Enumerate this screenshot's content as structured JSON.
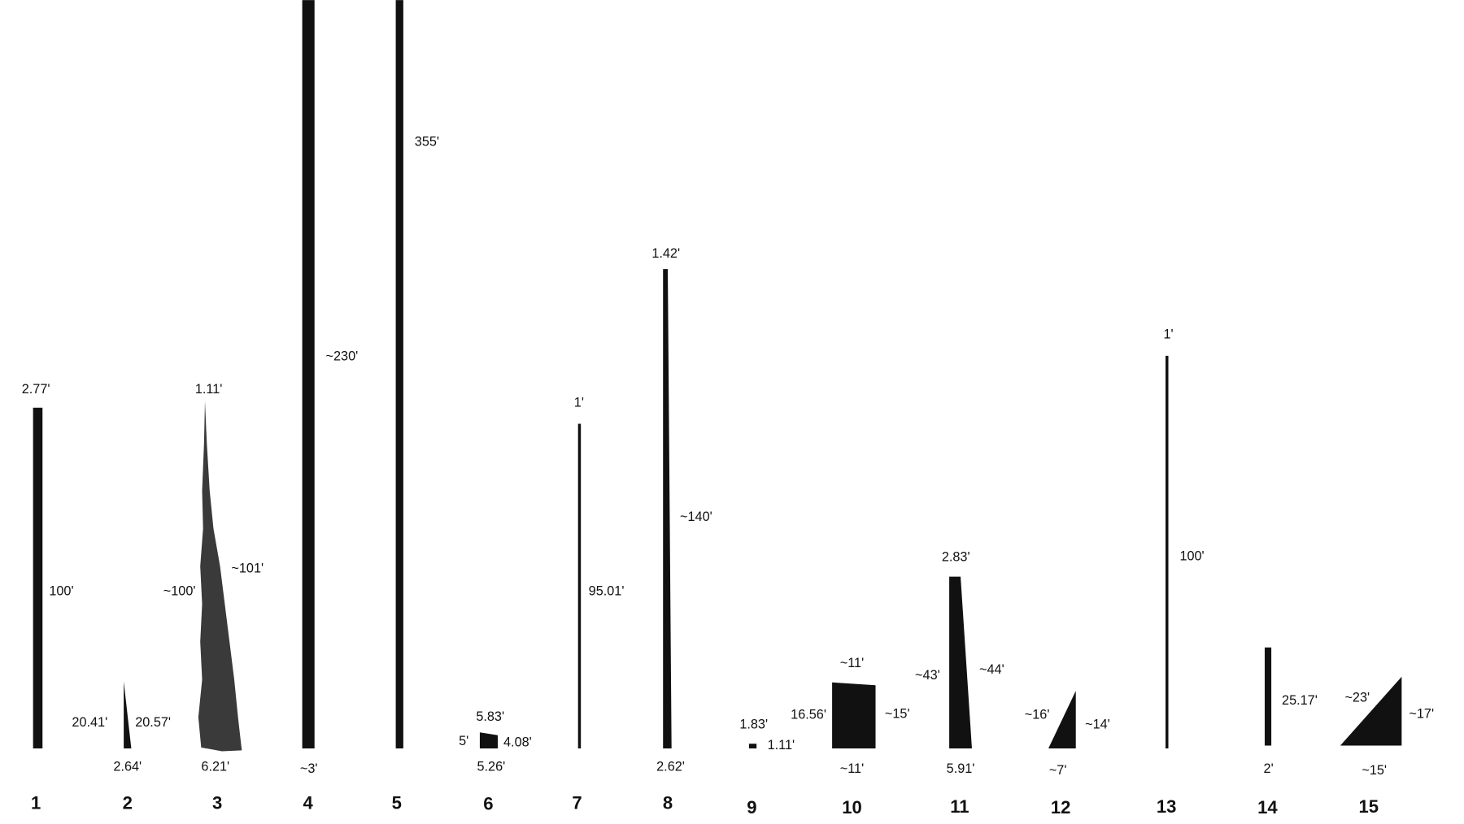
{
  "items": [
    {
      "number": "1",
      "top": "2.77'",
      "right": "100'"
    },
    {
      "number": "2",
      "left": "20.41'",
      "right": "20.57'",
      "bottom": "2.64'"
    },
    {
      "number": "3",
      "top": "1.11'",
      "left": "~100'",
      "right": "~101'",
      "bottom": "6.21'"
    },
    {
      "number": "4",
      "right": "~230'",
      "bottom": "~3'"
    },
    {
      "number": "5",
      "right": "355'"
    },
    {
      "number": "6",
      "top": "5.83'",
      "left": "5'",
      "right": "4.08'",
      "bottom": "5.26'"
    },
    {
      "number": "7",
      "top": "1'",
      "right": "95.01'"
    },
    {
      "number": "8",
      "top": "1.42'",
      "right": "~140'",
      "bottom": "2.62'"
    },
    {
      "number": "9",
      "top": "1.83'",
      "right": "1.11'"
    },
    {
      "number": "10",
      "top": "~11'",
      "left": "16.56'",
      "right": "~15'",
      "bottom": "~11'"
    },
    {
      "number": "11",
      "top": "2.83'",
      "left": "~43'",
      "right": "~44'",
      "bottom": "5.91'"
    },
    {
      "number": "12",
      "left": "~16'",
      "right": "~14'",
      "bottom": "~7'"
    },
    {
      "number": "13",
      "top": "1'",
      "right": "100'"
    },
    {
      "number": "14",
      "right": "25.17'",
      "bottom": "2'"
    },
    {
      "number": "15",
      "left": "~23'",
      "right": "~17'",
      "bottom": "~15'"
    }
  ]
}
